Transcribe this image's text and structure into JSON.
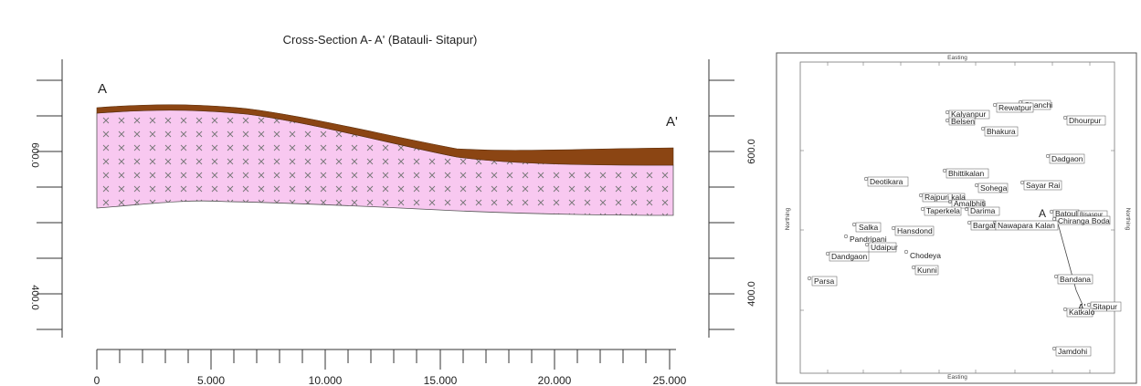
{
  "cross_section": {
    "title": "Cross-Section A- A' (Batauli- Sitapur)",
    "start_label": "A",
    "end_label": "A'",
    "x_ticks": [
      "0",
      "5.000",
      "10.000",
      "15.000",
      "20.000",
      "25.000"
    ],
    "x_range": [
      0,
      25000
    ],
    "left_y_ticks": [
      "600.0",
      "400.0"
    ],
    "right_y_ticks": [
      "600.0",
      "400.0"
    ],
    "colors": {
      "top_layer": "#8B4513",
      "lower_layer": "#F8C8F0",
      "hatch": "#777777"
    },
    "top_layer_pattern": "solid",
    "lower_layer_pattern": "x-hatch"
  },
  "location_map": {
    "axis_top": "Easting",
    "axis_bottom": "Easting",
    "axis_left": "Northing",
    "axis_right": "Northing",
    "section_start": "A",
    "section_end": "A'",
    "places": [
      "Chanchi",
      "Rewatpur",
      "Kalyanpur",
      "Belsen",
      "Dhourpur",
      "Bhakura",
      "Dadgaon",
      "Bhittikalan",
      "Deotikara",
      "Sohega",
      "Sayar Rai",
      "Rajpuri kala",
      "Amalbhiti",
      "Taperkela",
      "Darima",
      "Batouli",
      "Bisaspur",
      "Chiranga Boda",
      "Salka",
      "Hansdond",
      "Bargal",
      "Nawapara Kalan",
      "Pandripani",
      "Udaipur",
      "Chodeya",
      "Dandgaon",
      "Kunni",
      "Bandana",
      "Parsa",
      "Sitapur",
      "Katkalo",
      "Jamdohi"
    ],
    "colors": {
      "frame": "#333333",
      "section_line": "#444444"
    }
  }
}
